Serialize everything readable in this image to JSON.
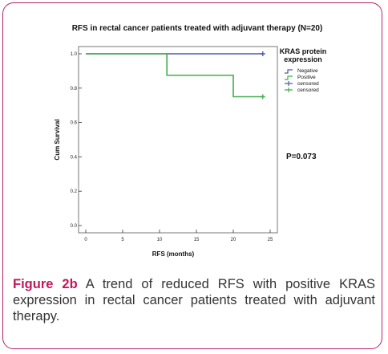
{
  "chart_data": {
    "type": "line",
    "title": "RFS in rectal cancer patients treated with adjuvant therapy (N=20)",
    "xlabel": "RFS (months)",
    "ylabel": "Cum Survival",
    "xlim": [
      0,
      25
    ],
    "ylim": [
      0,
      1.0
    ],
    "x_ticks": [
      "0",
      "5",
      "10",
      "15",
      "20",
      "25"
    ],
    "y_ticks": [
      "0.0",
      "0.2",
      "0.4",
      "0.6",
      "0.8",
      "1.0"
    ],
    "legend": {
      "title_line1": "KRAS protein",
      "title_line2": "expression",
      "placement": "top-right",
      "entries": [
        "Negative",
        "Positive",
        "censored",
        "censored"
      ]
    },
    "series": [
      {
        "name": "Negative",
        "color": "#4a5ca8",
        "step": true,
        "points": [
          [
            0,
            1.0
          ],
          [
            24,
            1.0
          ]
        ],
        "censored": [
          [
            24,
            1.0
          ]
        ]
      },
      {
        "name": "Positive",
        "color": "#3fae4a",
        "step": true,
        "points": [
          [
            0,
            1.0
          ],
          [
            11,
            0.875
          ],
          [
            20,
            0.75
          ],
          [
            24,
            0.75
          ]
        ],
        "censored": [
          [
            24,
            0.75
          ]
        ]
      }
    ],
    "annotations": [
      "P=0.073"
    ]
  },
  "caption": {
    "label": "Figure 2b",
    "text": " A trend of reduced RFS with positive KRAS expression in rectal cancer patients treated with adjuvant therapy."
  }
}
